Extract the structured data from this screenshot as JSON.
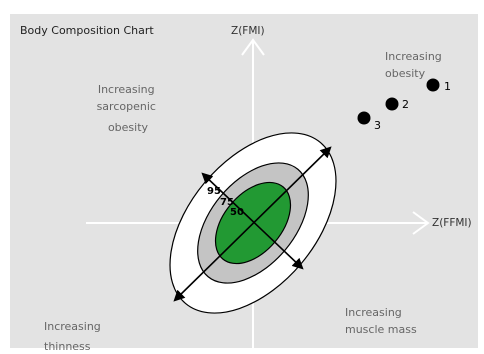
{
  "title": "Body Composition Chart",
  "axes": {
    "y_label": "Z(FMI)",
    "x_label": "Z(FFMI)"
  },
  "regions": {
    "top_left": [
      "Increasing",
      "sarcopenic",
      "obesity"
    ],
    "top_right": [
      "Increasing",
      "obesity"
    ],
    "bottom_left": [
      "Increasing",
      "thinness"
    ],
    "bottom_right": [
      "Increasing",
      "muscle mass"
    ]
  },
  "points": [
    {
      "label": "1"
    },
    {
      "label": "2"
    },
    {
      "label": "3"
    }
  ],
  "ellipse_labels": [
    "95",
    "75",
    "50"
  ],
  "colors": {
    "background": "#e3e3e3",
    "outer_ellipse": "#ffffff",
    "middle_ellipse": "#c4c4c4",
    "inner_ellipse": "#229933",
    "axis": "#ffffff",
    "points": "#000000"
  }
}
